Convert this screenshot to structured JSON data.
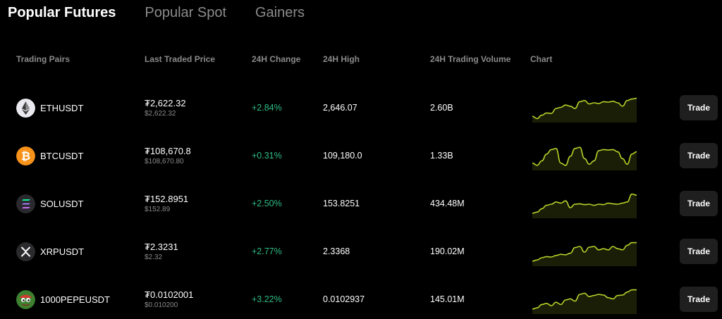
{
  "tabs": [
    {
      "label": "Popular Futures",
      "active": true
    },
    {
      "label": "Popular Spot",
      "active": false
    },
    {
      "label": "Gainers",
      "active": false
    }
  ],
  "columns": {
    "pair": "Trading Pairs",
    "price": "Last Traded Price",
    "change": "24H Change",
    "high": "24H High",
    "volume": "24H Trading Volume",
    "chart": "Chart"
  },
  "accent_colors": {
    "positive": "#2ebd85",
    "sparkline": "#b5d32a"
  },
  "rows": [
    {
      "symbol": "ETHUSDT",
      "icon": "ethereum-icon",
      "price": "₮2,622.32",
      "price_usd": "$2,622.32",
      "change": "+2.84%",
      "high": "2,646.07",
      "volume": "2.60B",
      "trade": "Trade",
      "spark": [
        0.15,
        0.05,
        0.2,
        0.3,
        0.28,
        0.5,
        0.55,
        0.65,
        0.6,
        0.5,
        0.8,
        0.85,
        0.7,
        0.75,
        0.72,
        0.8,
        0.78,
        0.82,
        0.75,
        0.6,
        0.85,
        0.92,
        0.95
      ]
    },
    {
      "symbol": "BTCUSDT",
      "icon": "bitcoin-icon",
      "price": "₮108,670.8",
      "price_usd": "$108,670.80",
      "change": "+0.31%",
      "high": "109,180.0",
      "volume": "1.33B",
      "trade": "Trade",
      "spark": [
        0.2,
        0.1,
        0.3,
        0.6,
        0.8,
        0.85,
        0.2,
        0.1,
        0.5,
        0.85,
        0.9,
        0.4,
        0.15,
        0.3,
        0.75,
        0.8,
        0.78,
        0.8,
        0.7,
        0.4,
        0.15,
        0.6,
        0.7
      ]
    },
    {
      "symbol": "SOLUSDT",
      "icon": "solana-icon",
      "price": "₮152.8951",
      "price_usd": "$152.89",
      "change": "+2.50%",
      "high": "153.8251",
      "volume": "434.48M",
      "trade": "Trade",
      "spark": [
        0.1,
        0.15,
        0.3,
        0.45,
        0.5,
        0.6,
        0.55,
        0.65,
        0.35,
        0.5,
        0.52,
        0.48,
        0.5,
        0.45,
        0.5,
        0.48,
        0.55,
        0.52,
        0.5,
        0.55,
        0.6,
        0.95,
        0.9
      ]
    },
    {
      "symbol": "XRPUSDT",
      "icon": "xrp-icon",
      "price": "₮2.3231",
      "price_usd": "$2.32",
      "change": "+2.77%",
      "high": "2.3368",
      "volume": "190.02M",
      "trade": "Trade",
      "spark": [
        0.1,
        0.15,
        0.25,
        0.3,
        0.28,
        0.35,
        0.4,
        0.38,
        0.45,
        0.7,
        0.75,
        0.5,
        0.72,
        0.75,
        0.6,
        0.65,
        0.6,
        0.75,
        0.65,
        0.6,
        0.8,
        0.92,
        0.92
      ]
    },
    {
      "symbol": "1000PEPEUSDT",
      "icon": "pepe-icon",
      "price": "₮0.0102001",
      "price_usd": "$0.010200",
      "change": "+3.22%",
      "high": "0.0102937",
      "volume": "145.01M",
      "trade": "Trade",
      "spark": [
        0.1,
        0.15,
        0.3,
        0.35,
        0.25,
        0.4,
        0.3,
        0.5,
        0.55,
        0.45,
        0.75,
        0.8,
        0.65,
        0.7,
        0.75,
        0.72,
        0.6,
        0.55,
        0.7,
        0.72,
        0.85,
        0.95,
        0.95
      ]
    }
  ]
}
